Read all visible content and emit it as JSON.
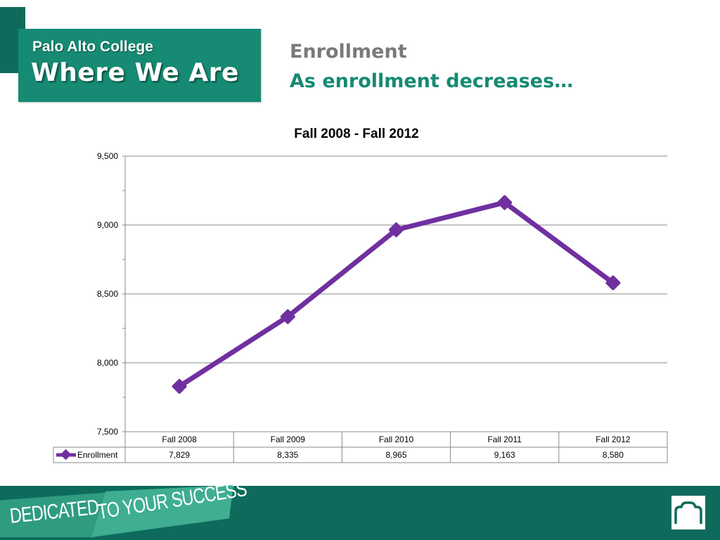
{
  "header": {
    "college": "Palo Alto College",
    "tagline": "Where We Are",
    "title": "Enrollment",
    "subtitle": "As enrollment decreases…"
  },
  "footer": {
    "text1": "DEDICATED",
    "text2": "TO YOUR SUCCESS"
  },
  "colors": {
    "brand": "#168a73",
    "series": "#7030a0"
  },
  "chart_data": {
    "type": "line",
    "title": "Fall 2008 - Fall 2012",
    "categories": [
      "Fall 2008",
      "Fall 2009",
      "Fall 2010",
      "Fall 2011",
      "Fall 2012"
    ],
    "series": [
      {
        "name": "Enrollment",
        "values": [
          7829,
          8335,
          8965,
          9163,
          8580
        ],
        "labels": [
          "7,829",
          "8,335",
          "8,965",
          "9,163",
          "8,580"
        ]
      }
    ],
    "ylim": [
      7500,
      9500
    ],
    "yticks": [
      "7,500",
      "8,000",
      "8,500",
      "9,000",
      "9,500"
    ],
    "ytick_values": [
      7500,
      8000,
      8500,
      9000,
      9500
    ],
    "grid": true,
    "legend": "data-table"
  }
}
